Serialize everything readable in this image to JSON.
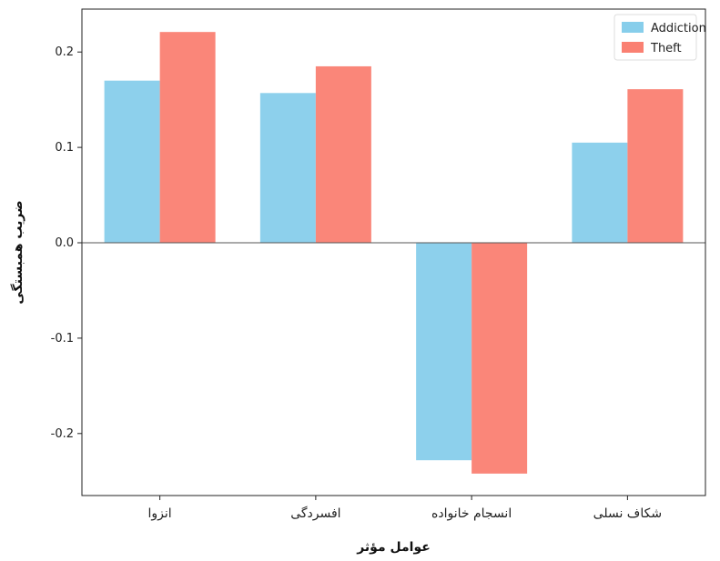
{
  "chart_data": {
    "type": "bar",
    "title": "",
    "xlabel": "عوامل مؤثر",
    "ylabel": "ضریب همبستگی",
    "categories": [
      "انزوا",
      "افسردگی",
      "انسجام خانواده",
      "شکاف نسلی"
    ],
    "series": [
      {
        "name": "Addiction",
        "color": "#87ceeb",
        "values": [
          0.17,
          0.157,
          -0.228,
          0.105
        ]
      },
      {
        "name": "Theft",
        "color": "#fa8072",
        "values": [
          0.221,
          0.185,
          -0.242,
          0.161
        ]
      }
    ],
    "ylim": [
      -0.265,
      0.245
    ],
    "yticks": [
      -0.2,
      -0.1,
      0.0,
      0.1,
      0.2
    ],
    "ytick_labels": [
      "-0.2",
      "-0.1",
      "0.0",
      "0.1",
      "0.2"
    ],
    "grid": false,
    "legend_position": "top-right"
  }
}
